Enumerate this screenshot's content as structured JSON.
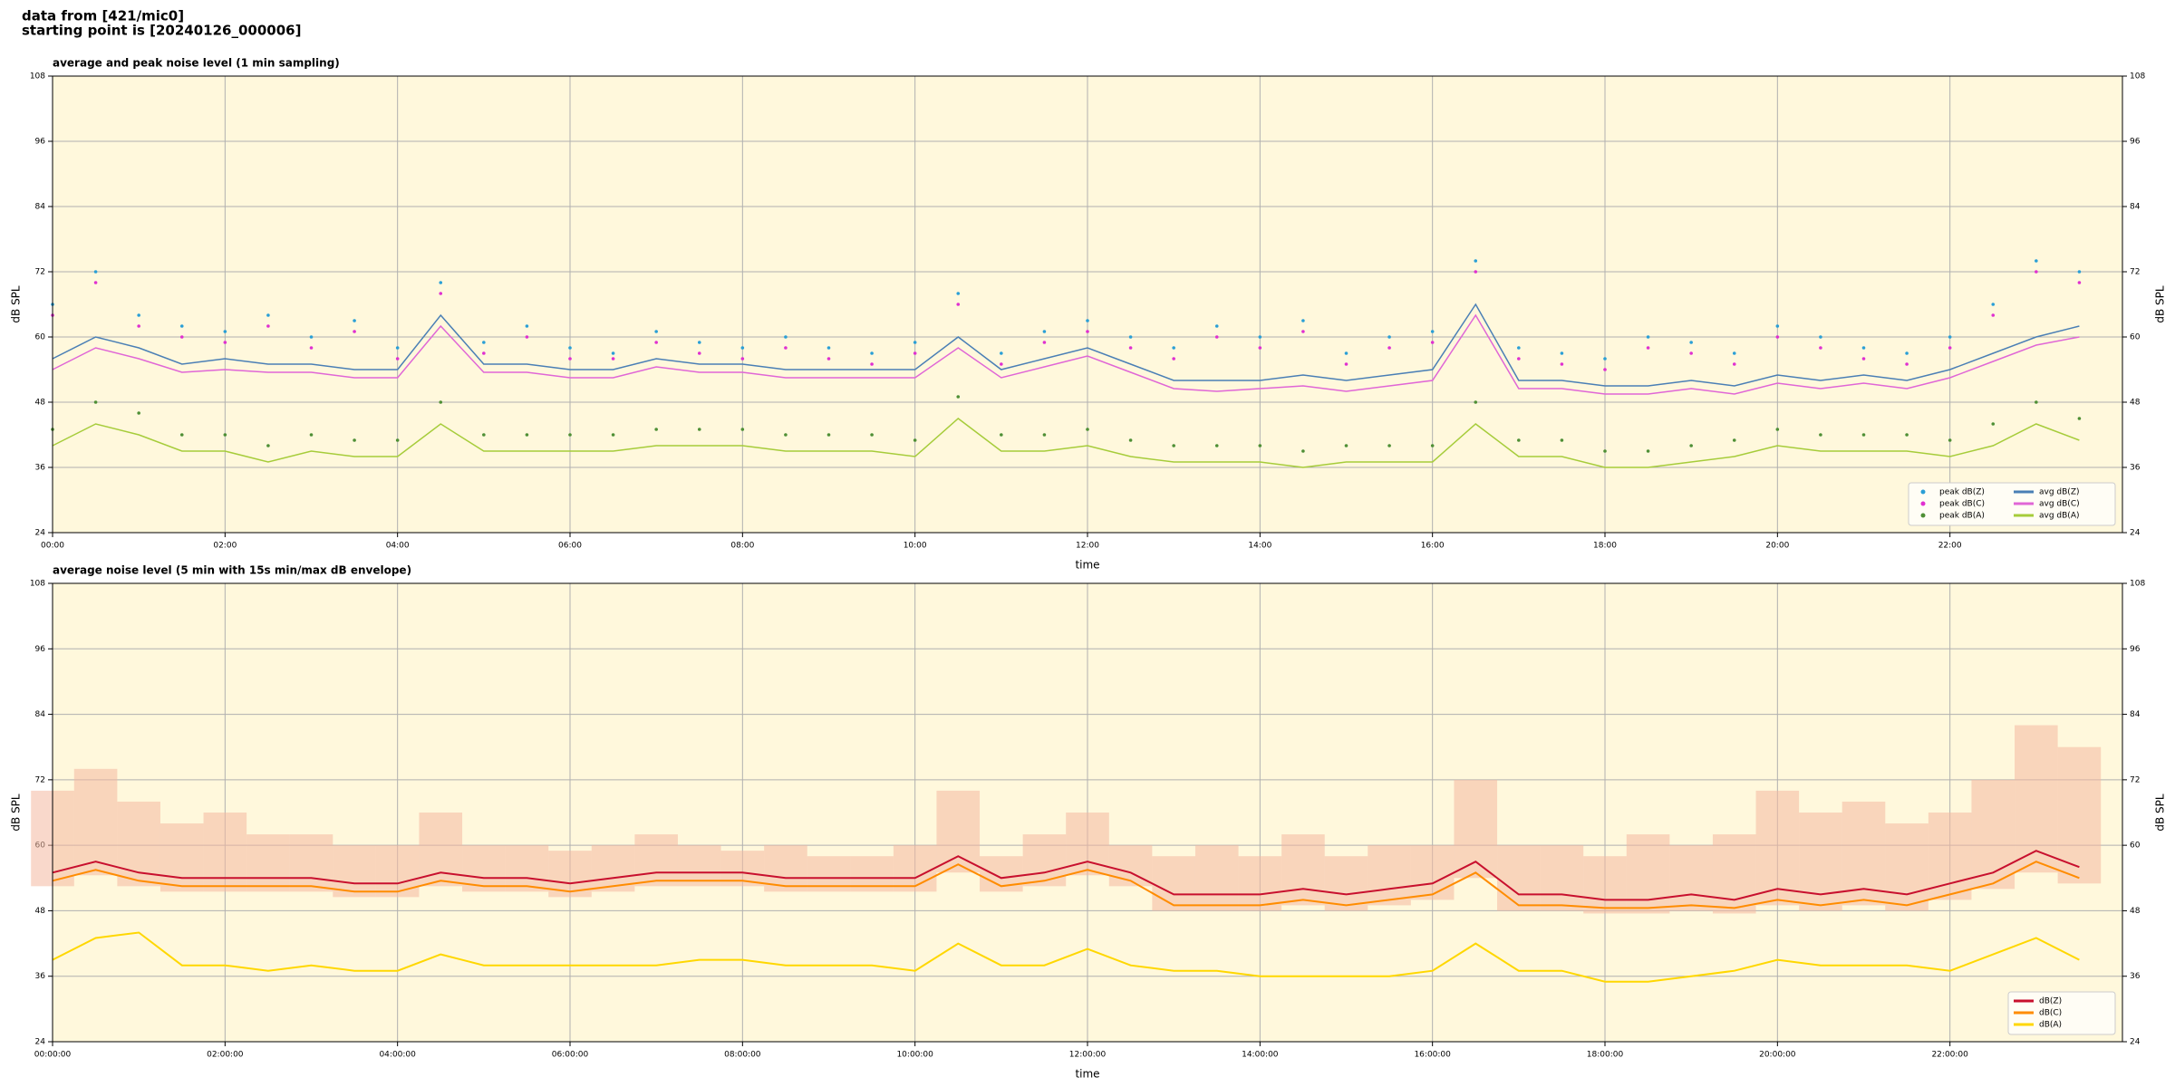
{
  "header": {
    "title": "data from [421/mic0]",
    "subtitle": "starting point is [20240126_000006]"
  },
  "chart_data": [
    {
      "type": "line",
      "title": "average and peak noise level (1 min sampling)",
      "xlabel": "time",
      "ylabel": "dB SPL",
      "facecolor": "#fff8dc",
      "grid": true,
      "legend": "lower right",
      "legend_columns": 2,
      "xlim": [
        0,
        24
      ],
      "ylim": [
        24,
        108
      ],
      "xticks": [
        {
          "value": 0,
          "label": "00:00"
        },
        {
          "value": 2,
          "label": "02:00"
        },
        {
          "value": 4,
          "label": "04:00"
        },
        {
          "value": 6,
          "label": "06:00"
        },
        {
          "value": 8,
          "label": "08:00"
        },
        {
          "value": 10,
          "label": "10:00"
        },
        {
          "value": 12,
          "label": "12:00"
        },
        {
          "value": 14,
          "label": "14:00"
        },
        {
          "value": 16,
          "label": "16:00"
        },
        {
          "value": 18,
          "label": "18:00"
        },
        {
          "value": 20,
          "label": "20:00"
        },
        {
          "value": 22,
          "label": "22:00"
        }
      ],
      "yticks": [
        24,
        36,
        48,
        60,
        72,
        84,
        96,
        108
      ],
      "x": [
        0,
        0.5,
        1,
        1.5,
        2,
        2.5,
        3,
        3.5,
        4,
        4.5,
        5,
        5.5,
        6,
        6.5,
        7,
        7.5,
        8,
        8.5,
        9,
        9.5,
        10,
        10.5,
        11,
        11.5,
        12,
        12.5,
        13,
        13.5,
        14,
        14.5,
        15,
        15.5,
        16,
        16.5,
        17,
        17.5,
        18,
        18.5,
        19,
        19.5,
        20,
        20.5,
        21,
        21.5,
        22,
        22.5,
        23,
        23.5
      ],
      "series": [
        {
          "name": "peak dB(Z)",
          "type": "scatter",
          "color": "#2a9fd6",
          "values": [
            66,
            72,
            64,
            62,
            61,
            64,
            60,
            63,
            58,
            70,
            59,
            62,
            58,
            57,
            61,
            59,
            58,
            60,
            58,
            57,
            59,
            68,
            57,
            61,
            63,
            60,
            58,
            62,
            60,
            63,
            57,
            60,
            61,
            74,
            58,
            57,
            56,
            60,
            59,
            57,
            62,
            60,
            58,
            57,
            60,
            66,
            74,
            72
          ]
        },
        {
          "name": "peak dB(C)",
          "type": "scatter",
          "color": "#e030d0",
          "values": [
            64,
            70,
            62,
            60,
            59,
            62,
            58,
            61,
            56,
            68,
            57,
            60,
            56,
            56,
            59,
            57,
            56,
            58,
            56,
            55,
            57,
            66,
            55,
            59,
            61,
            58,
            56,
            60,
            58,
            61,
            55,
            58,
            59,
            72,
            56,
            55,
            54,
            58,
            57,
            55,
            60,
            58,
            56,
            55,
            58,
            64,
            72,
            70
          ]
        },
        {
          "name": "peak dB(A)",
          "type": "scatter",
          "color": "#4e8f35",
          "values": [
            43,
            48,
            46,
            42,
            42,
            40,
            42,
            41,
            41,
            48,
            42,
            42,
            42,
            42,
            43,
            43,
            43,
            42,
            42,
            42,
            41,
            49,
            42,
            42,
            43,
            41,
            40,
            40,
            40,
            39,
            40,
            40,
            40,
            48,
            41,
            41,
            39,
            39,
            40,
            41,
            43,
            42,
            42,
            42,
            41,
            44,
            48,
            45
          ]
        },
        {
          "name": "avg dB(Z)",
          "type": "line",
          "color": "#4a7fb5",
          "values": [
            56,
            60,
            58,
            55,
            56,
            55,
            55,
            54,
            54,
            64,
            55,
            55,
            54,
            54,
            56,
            55,
            55,
            54,
            54,
            54,
            54,
            60,
            54,
            56,
            58,
            55,
            52,
            52,
            52,
            53,
            52,
            53,
            54,
            66,
            52,
            52,
            51,
            51,
            52,
            51,
            53,
            52,
            53,
            52,
            54,
            57,
            60,
            62
          ]
        },
        {
          "name": "avg dB(C)",
          "type": "line",
          "color": "#e066d6",
          "values": [
            54,
            58,
            56,
            53.5,
            54,
            53.5,
            53.5,
            52.5,
            52.5,
            62,
            53.5,
            53.5,
            52.5,
            52.5,
            54.5,
            53.5,
            53.5,
            52.5,
            52.5,
            52.5,
            52.5,
            58,
            52.5,
            54.5,
            56.5,
            53.5,
            50.5,
            50,
            50.5,
            51,
            50,
            51,
            52,
            64,
            50.5,
            50.5,
            49.5,
            49.5,
            50.5,
            49.5,
            51.5,
            50.5,
            51.5,
            50.5,
            52.5,
            55.5,
            58.5,
            60
          ]
        },
        {
          "name": "avg dB(A)",
          "type": "line",
          "color": "#a6cc3a",
          "values": [
            40,
            44,
            42,
            39,
            39,
            37,
            39,
            38,
            38,
            44,
            39,
            39,
            39,
            39,
            40,
            40,
            40,
            39,
            39,
            39,
            38,
            45,
            39,
            39,
            40,
            38,
            37,
            37,
            37,
            36,
            37,
            37,
            37,
            44,
            38,
            38,
            36,
            36,
            37,
            38,
            40,
            39,
            39,
            39,
            38,
            40,
            44,
            41
          ]
        }
      ]
    },
    {
      "type": "line",
      "title": "average noise level (5 min with 15s min/max dB envelope)",
      "xlabel": "time",
      "ylabel": "dB SPL",
      "facecolor": "#fff8dc",
      "grid": true,
      "legend": "lower right",
      "legend_columns": 1,
      "xlim": [
        0,
        24
      ],
      "ylim": [
        24,
        108
      ],
      "xticks": [
        {
          "value": 0,
          "label": "00:00:00"
        },
        {
          "value": 2,
          "label": "02:00:00"
        },
        {
          "value": 4,
          "label": "04:00:00"
        },
        {
          "value": 6,
          "label": "06:00:00"
        },
        {
          "value": 8,
          "label": "08:00:00"
        },
        {
          "value": 10,
          "label": "10:00:00"
        },
        {
          "value": 12,
          "label": "12:00:00"
        },
        {
          "value": 14,
          "label": "14:00:00"
        },
        {
          "value": 16,
          "label": "16:00:00"
        },
        {
          "value": 18,
          "label": "18:00:00"
        },
        {
          "value": 20,
          "label": "20:00:00"
        },
        {
          "value": 22,
          "label": "22:00:00"
        }
      ],
      "yticks": [
        24,
        36,
        48,
        60,
        72,
        84,
        96,
        108
      ],
      "x": [
        0,
        0.5,
        1,
        1.5,
        2,
        2.5,
        3,
        3.5,
        4,
        4.5,
        5,
        5.5,
        6,
        6.5,
        7,
        7.5,
        8,
        8.5,
        9,
        9.5,
        10,
        10.5,
        11,
        11.5,
        12,
        12.5,
        13,
        13.5,
        14,
        14.5,
        15,
        15.5,
        16,
        16.5,
        17,
        17.5,
        18,
        18.5,
        19,
        19.5,
        20,
        20.5,
        21,
        21.5,
        22,
        22.5,
        23,
        23.5
      ],
      "envelope": {
        "color": "#f4b8a0",
        "lower": [
          52.5,
          54.5,
          52.5,
          51.5,
          51.5,
          51.5,
          51.5,
          50.5,
          50.5,
          52.5,
          51.5,
          51.5,
          50.5,
          51.5,
          52.5,
          52.5,
          52.5,
          51.5,
          51.5,
          51.5,
          51.5,
          55,
          51.5,
          52.5,
          54.5,
          52.5,
          48,
          48,
          48,
          49,
          48,
          49,
          50,
          54,
          48,
          48,
          47.5,
          47.5,
          48,
          47.5,
          49,
          48,
          49,
          48,
          50,
          52,
          55,
          53
        ],
        "upper": [
          70,
          74,
          68,
          64,
          66,
          62,
          62,
          60,
          60,
          66,
          60,
          60,
          59,
          60,
          62,
          60,
          59,
          60,
          58,
          58,
          60,
          70,
          58,
          62,
          66,
          60,
          58,
          60,
          58,
          62,
          58,
          60,
          60,
          72,
          60,
          60,
          58,
          62,
          60,
          62,
          70,
          66,
          68,
          64,
          66,
          72,
          82,
          78
        ]
      },
      "series": [
        {
          "name": "dB(Z)",
          "type": "line",
          "color": "#c8102e",
          "values": [
            55,
            57,
            55,
            54,
            54,
            54,
            54,
            53,
            53,
            55,
            54,
            54,
            53,
            54,
            55,
            55,
            55,
            54,
            54,
            54,
            54,
            58,
            54,
            55,
            57,
            55,
            51,
            51,
            51,
            52,
            51,
            52,
            53,
            57,
            51,
            51,
            50,
            50,
            51,
            50,
            52,
            51,
            52,
            51,
            53,
            55,
            59,
            56
          ]
        },
        {
          "name": "dB(C)",
          "type": "line",
          "color": "#ff8c00",
          "values": [
            53.5,
            55.5,
            53.5,
            52.5,
            52.5,
            52.5,
            52.5,
            51.5,
            51.5,
            53.5,
            52.5,
            52.5,
            51.5,
            52.5,
            53.5,
            53.5,
            53.5,
            52.5,
            52.5,
            52.5,
            52.5,
            56.5,
            52.5,
            53.5,
            55.5,
            53.5,
            49,
            49,
            49,
            50,
            49,
            50,
            51,
            55,
            49,
            49,
            48.5,
            48.5,
            49,
            48.5,
            50,
            49,
            50,
            49,
            51,
            53,
            57,
            54
          ]
        },
        {
          "name": "dB(A)",
          "type": "line",
          "color": "#ffd700",
          "values": [
            39,
            43,
            44,
            38,
            38,
            37,
            38,
            37,
            37,
            40,
            38,
            38,
            38,
            38,
            38,
            39,
            39,
            38,
            38,
            38,
            37,
            42,
            38,
            38,
            41,
            38,
            37,
            37,
            36,
            36,
            36,
            36,
            37,
            42,
            37,
            37,
            35,
            35,
            36,
            37,
            39,
            38,
            38,
            38,
            37,
            40,
            43,
            39
          ]
        }
      ]
    }
  ]
}
